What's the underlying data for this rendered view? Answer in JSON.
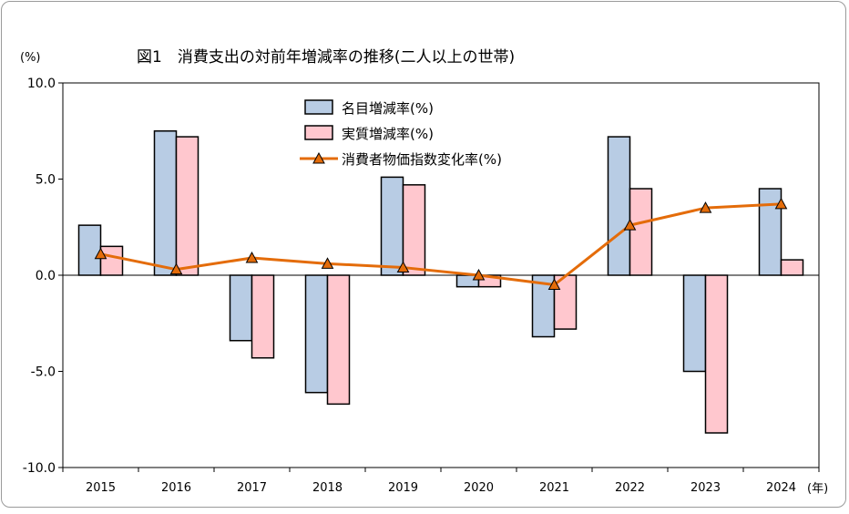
{
  "chart_data": {
    "type": "bar",
    "title": "図1　消費支出の対前年増減率の推移(二人以上の世帯)",
    "ylabel": "(%)",
    "xlabel": "(年)",
    "categories": [
      "2015",
      "2016",
      "2017",
      "2018",
      "2019",
      "2020",
      "2021",
      "2022",
      "2023",
      "2024"
    ],
    "ylim": [
      -10.0,
      10.0
    ],
    "yticks": [
      10.0,
      5.0,
      0.0,
      -5.0,
      -10.0
    ],
    "ytick_labels": [
      "10.0",
      "5.0",
      "0.0",
      "-5.0",
      "-10.0"
    ],
    "grid": false,
    "legend_position": "top-center",
    "series": [
      {
        "name": "名目増減率(%)",
        "kind": "bar",
        "color": "#b8cce4",
        "values": [
          2.6,
          7.5,
          -3.4,
          -6.1,
          5.1,
          -0.6,
          -3.2,
          7.2,
          -5.0,
          4.5
        ]
      },
      {
        "name": "実質増減率(%)",
        "kind": "bar",
        "color": "#ffc7ce",
        "values": [
          1.5,
          7.2,
          -4.3,
          -6.7,
          4.7,
          -0.6,
          -2.8,
          4.5,
          -8.2,
          0.8
        ]
      },
      {
        "name": "消費者物価指数変化率(%)",
        "kind": "line",
        "color": "#e46c0a",
        "marker": "triangle",
        "values": [
          1.1,
          0.3,
          0.9,
          0.6,
          0.4,
          0.0,
          -0.5,
          2.6,
          3.5,
          3.7
        ]
      }
    ]
  }
}
